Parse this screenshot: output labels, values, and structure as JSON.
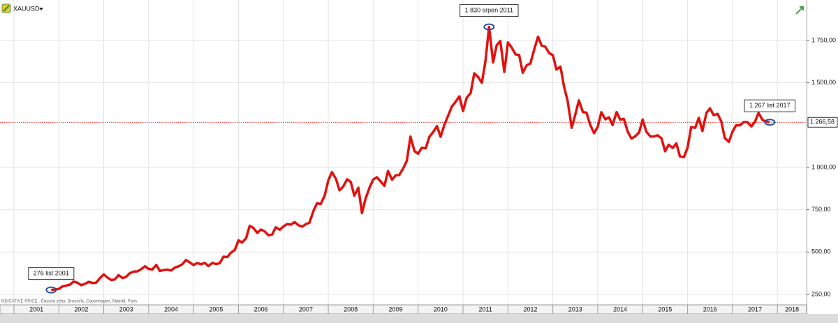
{
  "chart_data": {
    "type": "line",
    "symbol": "XAUUSD",
    "footer": "NDICATIVE PRICE . Časová zóna: Brussels, Copenhagen, Madrid, Paris",
    "x": [
      2001.83,
      2001.92,
      2002,
      2002.08,
      2002.17,
      2002.25,
      2002.33,
      2002.42,
      2002.5,
      2002.58,
      2002.67,
      2002.75,
      2002.83,
      2002.92,
      2003,
      2003.08,
      2003.17,
      2003.25,
      2003.33,
      2003.42,
      2003.5,
      2003.58,
      2003.67,
      2003.75,
      2003.83,
      2003.92,
      2004,
      2004.08,
      2004.17,
      2004.25,
      2004.33,
      2004.42,
      2004.5,
      2004.58,
      2004.67,
      2004.75,
      2004.83,
      2004.92,
      2005,
      2005.08,
      2005.17,
      2005.25,
      2005.33,
      2005.42,
      2005.5,
      2005.58,
      2005.67,
      2005.75,
      2005.83,
      2005.92,
      2006,
      2006.08,
      2006.17,
      2006.25,
      2006.33,
      2006.42,
      2006.5,
      2006.58,
      2006.67,
      2006.75,
      2006.83,
      2006.92,
      2007,
      2007.08,
      2007.17,
      2007.25,
      2007.33,
      2007.42,
      2007.5,
      2007.58,
      2007.67,
      2007.75,
      2007.83,
      2007.92,
      2008,
      2008.08,
      2008.17,
      2008.25,
      2008.33,
      2008.42,
      2008.5,
      2008.58,
      2008.67,
      2008.75,
      2008.83,
      2008.92,
      2009,
      2009.08,
      2009.17,
      2009.25,
      2009.33,
      2009.42,
      2009.5,
      2009.58,
      2009.67,
      2009.75,
      2009.83,
      2009.92,
      2010,
      2010.08,
      2010.17,
      2010.25,
      2010.33,
      2010.42,
      2010.5,
      2010.58,
      2010.67,
      2010.75,
      2010.83,
      2010.92,
      2011,
      2011.08,
      2011.17,
      2011.25,
      2011.33,
      2011.42,
      2011.5,
      2011.58,
      2011.67,
      2011.75,
      2011.83,
      2011.92,
      2012,
      2012.08,
      2012.17,
      2012.25,
      2012.33,
      2012.42,
      2012.5,
      2012.58,
      2012.67,
      2012.75,
      2012.83,
      2012.92,
      2013,
      2013.08,
      2013.17,
      2013.25,
      2013.33,
      2013.42,
      2013.5,
      2013.58,
      2013.67,
      2013.75,
      2013.83,
      2013.92,
      2014,
      2014.08,
      2014.17,
      2014.25,
      2014.33,
      2014.42,
      2014.5,
      2014.58,
      2014.67,
      2014.75,
      2014.83,
      2014.92,
      2015,
      2015.08,
      2015.17,
      2015.25,
      2015.33,
      2015.42,
      2015.5,
      2015.58,
      2015.67,
      2015.75,
      2015.83,
      2015.92,
      2016,
      2016.08,
      2016.17,
      2016.25,
      2016.33,
      2016.42,
      2016.5,
      2016.58,
      2016.67,
      2016.75,
      2016.83,
      2016.92,
      2017,
      2017.08,
      2017.17,
      2017.25,
      2017.33,
      2017.42,
      2017.5,
      2017.58,
      2017.67,
      2017.75,
      2017.83
    ],
    "series": [
      {
        "name": "XAUUSD",
        "color": "#e0120f",
        "values": [
          276,
          279,
          282,
          297,
          302,
          308,
          326,
          318,
          304,
          312,
          324,
          317,
          319,
          347,
          368,
          350,
          334,
          339,
          364,
          346,
          354,
          375,
          385,
          386,
          398,
          416,
          400,
          397,
          424,
          388,
          394,
          396,
          391,
          408,
          416,
          428,
          453,
          438,
          423,
          435,
          428,
          436,
          417,
          436,
          429,
          434,
          473,
          470,
          496,
          513,
          569,
          556,
          582,
          655,
          643,
          613,
          633,
          623,
          599,
          604,
          646,
          632,
          651,
          665,
          662,
          677,
          659,
          650,
          665,
          673,
          743,
          789,
          783,
          834,
          923,
          972,
          933,
          865,
          886,
          930,
          914,
          833,
          880,
          730,
          815,
          882,
          928,
          942,
          916,
          891,
          979,
          927,
          953,
          955,
          995,
          1040,
          1182,
          1096,
          1081,
          1116,
          1113,
          1180,
          1207,
          1244,
          1181,
          1248,
          1307,
          1359,
          1386,
          1420,
          1333,
          1411,
          1439,
          1556,
          1536,
          1500,
          1628,
          1830,
          1620,
          1722,
          1747,
          1564,
          1738,
          1710,
          1668,
          1664,
          1559,
          1604,
          1614,
          1692,
          1772,
          1720,
          1713,
          1675,
          1663,
          1578,
          1595,
          1476,
          1393,
          1234,
          1312,
          1396,
          1327,
          1323,
          1253,
          1202,
          1240,
          1326,
          1284,
          1296,
          1250,
          1327,
          1282,
          1287,
          1210,
          1171,
          1183,
          1206,
          1283,
          1212,
          1183,
          1182,
          1190,
          1172,
          1095,
          1134,
          1115,
          1142,
          1065,
          1061,
          1117,
          1238,
          1234,
          1293,
          1215,
          1322,
          1349,
          1309,
          1316,
          1272,
          1173,
          1151,
          1211,
          1248,
          1249,
          1268,
          1268,
          1242,
          1269,
          1322,
          1280,
          1271,
          1267
        ]
      }
    ],
    "xlim": [
      2000.69,
      2018.65
    ],
    "xticks": [
      2001,
      2002,
      2003,
      2004,
      2005,
      2006,
      2007,
      2008,
      2009,
      2010,
      2011,
      2012,
      2013,
      2014,
      2015,
      2016,
      2017,
      2018
    ],
    "ylim": [
      188,
      1989
    ],
    "yticks": [
      {
        "value": 250,
        "label": "250,00"
      },
      {
        "value": 500,
        "label": "500,00"
      },
      {
        "value": 750,
        "label": "750,00"
      },
      {
        "value": 1000,
        "label": "1 000,00"
      },
      {
        "value": 1500,
        "label": "1 500,00"
      },
      {
        "value": 1750,
        "label": "1 750,00"
      }
    ],
    "grid": true,
    "price_line": {
      "value": 1266.58,
      "value_label": "1 266,58",
      "color": "#e0120f"
    },
    "annotations": [
      {
        "label": "276 list 2001",
        "x": 2001.83,
        "value": 276
      },
      {
        "label": "1 830 srpen 2011",
        "x": 2011.58,
        "value": 1830
      },
      {
        "label": "1 267 list 2017",
        "x": 2017.83,
        "value": 1267
      }
    ]
  }
}
